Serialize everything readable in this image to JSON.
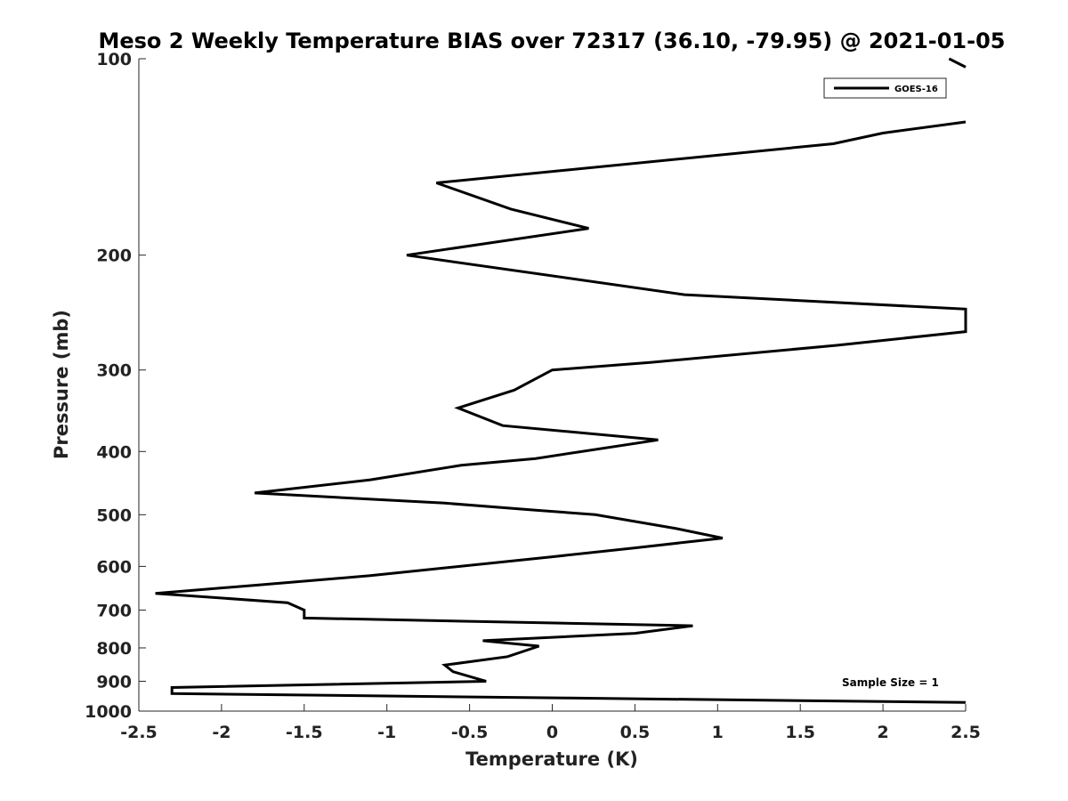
{
  "chart_data": {
    "type": "line",
    "title": "Meso 2 Weekly Temperature BIAS over 72317 (36.10, -79.95) @ 2021-01-05",
    "xlabel": "Temperature (K)",
    "ylabel": "Pressure (mb)",
    "xlim": [
      -2.5,
      2.5
    ],
    "ylim": [
      1000,
      100
    ],
    "y_scale": "log",
    "x_ticks": [
      "-2.5",
      "-2",
      "-1.5",
      "-1",
      "-0.5",
      "0",
      "0.5",
      "1",
      "1.5",
      "2",
      "2.5"
    ],
    "y_ticks": [
      "100",
      "200",
      "300",
      "400",
      "500",
      "600",
      "700",
      "800",
      "900",
      "1000"
    ],
    "grid": false,
    "legend_position": "top-right",
    "annotation": "Sample Size = 1",
    "series": [
      {
        "name": "GOES-16",
        "color": "#000000",
        "points": [
          [
            2.4,
            100
          ],
          [
            2.5,
            103
          ],
          [
            2.5,
            125
          ],
          [
            2.0,
            130
          ],
          [
            1.7,
            135
          ],
          [
            -0.7,
            155
          ],
          [
            -0.25,
            170
          ],
          [
            0.22,
            182
          ],
          [
            -0.88,
            200
          ],
          [
            0.8,
            230
          ],
          [
            2.5,
            242
          ],
          [
            2.5,
            262
          ],
          [
            1.72,
            275
          ],
          [
            0.6,
            292
          ],
          [
            0.0,
            300
          ],
          [
            -0.23,
            322
          ],
          [
            -0.57,
            343
          ],
          [
            -0.3,
            365
          ],
          [
            0.64,
            384
          ],
          [
            -0.1,
            410
          ],
          [
            -0.55,
            420
          ],
          [
            -1.1,
            442
          ],
          [
            -1.8,
            463
          ],
          [
            -0.65,
            480
          ],
          [
            -0.1,
            492
          ],
          [
            0.26,
            500
          ],
          [
            0.75,
            525
          ],
          [
            1.03,
            543
          ],
          [
            0.5,
            562
          ],
          [
            0.0,
            580
          ],
          [
            -1.1,
            620
          ],
          [
            -1.75,
            640
          ],
          [
            -2.4,
            660
          ],
          [
            -1.6,
            682
          ],
          [
            -1.5,
            700
          ],
          [
            -1.5,
            720
          ],
          [
            0.85,
            740
          ],
          [
            0.5,
            760
          ],
          [
            -0.42,
            780
          ],
          [
            -0.08,
            795
          ],
          [
            -0.27,
            825
          ],
          [
            -0.65,
            850
          ],
          [
            -0.6,
            870
          ],
          [
            -0.4,
            900
          ],
          [
            -2.3,
            920
          ],
          [
            -2.3,
            940
          ],
          [
            0.1,
            955
          ],
          [
            2.5,
            970
          ]
        ]
      }
    ]
  }
}
